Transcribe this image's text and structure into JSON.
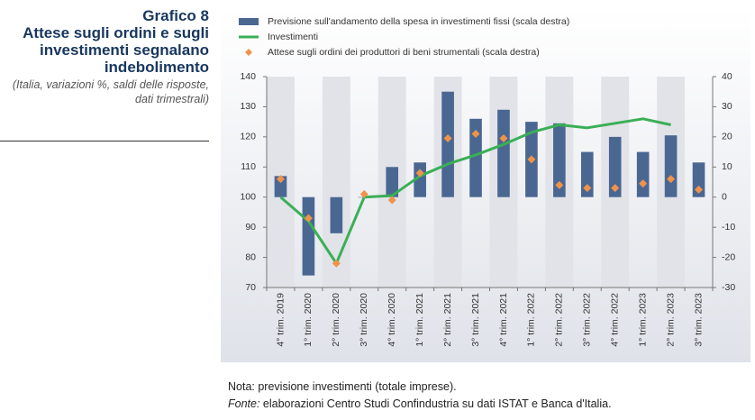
{
  "chart_data": {
    "type": "bar",
    "title": "Grafico 8",
    "subtitle": "Attese sugli ordini e sugli investimenti segnalano indebolimento",
    "caption": "(Italia, variazioni %, saldi delle risposte, dati trimestrali)",
    "note": "Nota: previsione investimenti (totale imprese).",
    "source_label": "Fonte:",
    "source": " elaborazioni Centro Studi Confindustria su dati ISTAT e Banca d'Italia.",
    "categories": [
      "4° trim. 2019",
      "1° trim. 2020",
      "2° trim. 2020",
      "3° trim. 2020",
      "4° trim. 2020",
      "1° trim. 2021",
      "2° trim. 2021",
      "3° trim. 2021",
      "4° trim. 2021",
      "1° trim. 2022",
      "2° trim. 2022",
      "3° trim. 2022",
      "4° trim. 2022",
      "1° trim. 2023",
      "2° trim. 2023",
      "3° trim. 2023"
    ],
    "series": [
      {
        "name": "Previsione sull'andamento della spesa in investimenti fissi (scala destra)",
        "type": "bar",
        "axis": "y2",
        "color": "#4a6792",
        "values": [
          7,
          -26,
          -12,
          0,
          10,
          11.5,
          35,
          26,
          29,
          25,
          24.5,
          15,
          20,
          15,
          20.5,
          11.5
        ]
      },
      {
        "name": "Investimenti",
        "type": "line",
        "color": "#3aaf55",
        "values": [
          100,
          92,
          78,
          100,
          100.5,
          107,
          111,
          114,
          117.5,
          121.5,
          124,
          123,
          124.5,
          126,
          124,
          null
        ]
      },
      {
        "name": "Attese sugli ordini dei produttori di beni strumentali (scala destra)",
        "type": "scatter",
        "axis": "y2",
        "color": "#f0934a",
        "values": [
          6,
          -7,
          -22,
          1,
          -1,
          8,
          19.5,
          21,
          19.5,
          12.5,
          4,
          3,
          3,
          4.5,
          6,
          2.5
        ]
      }
    ],
    "ylim": [
      70,
      140
    ],
    "yticks": [
      70,
      80,
      90,
      100,
      110,
      120,
      130,
      140
    ],
    "y2lim": [
      -30,
      40
    ],
    "y2ticks": [
      -30,
      -20,
      -10,
      0,
      10,
      20,
      30,
      40
    ]
  }
}
